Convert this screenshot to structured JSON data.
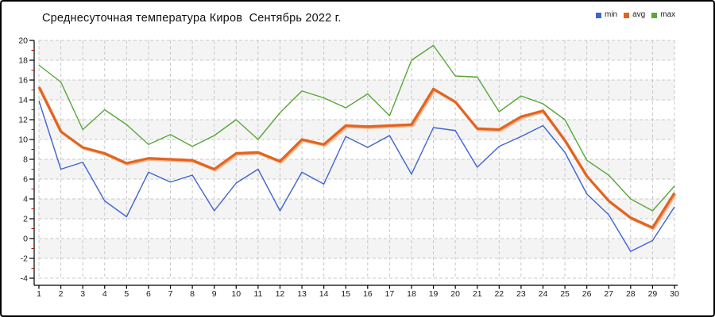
{
  "title": "Среднесуточная температура Киров  Сентябрь 2022 г.",
  "legend": {
    "position": "top-right",
    "items": [
      "min",
      "avg",
      "max"
    ]
  },
  "axis": {
    "ytick_labels": [
      "20",
      "18",
      "16",
      "14",
      "12",
      "10",
      "8",
      "6",
      "4",
      "2",
      "0",
      "-2",
      "-4"
    ],
    "xtick_labels": [
      "1",
      "2",
      "3",
      "4",
      "5",
      "6",
      "7",
      "8",
      "9",
      "10",
      "11",
      "12",
      "13",
      "14",
      "15",
      "16",
      "17",
      "18",
      "19",
      "20",
      "21",
      "22",
      "23",
      "24",
      "25",
      "26",
      "27",
      "28",
      "29",
      "30"
    ]
  },
  "style": {
    "background": "#ffffff",
    "border_color": "#000000",
    "plot_band_color": "#f4f4f5",
    "gridline_color": "#c9c9c9",
    "axis_color": "#000000",
    "minor_tick_color": "#cc0000",
    "tick_label_color": "#1a1a1a",
    "title_color": "#111111",
    "avg_halo_color": "#f4ae84"
  },
  "chart_data": {
    "type": "line",
    "title": "Среднесуточная температура Киров  Сентябрь 2022 г.",
    "xlabel": "",
    "ylabel": "",
    "x": [
      1,
      2,
      3,
      4,
      5,
      6,
      7,
      8,
      9,
      10,
      11,
      12,
      13,
      14,
      15,
      16,
      17,
      18,
      19,
      20,
      21,
      22,
      23,
      24,
      25,
      26,
      27,
      28,
      29,
      30
    ],
    "xlim": [
      1,
      30
    ],
    "ylim": [
      -4,
      20
    ],
    "ytick_step": 2,
    "grid": true,
    "grid_style": "dashed",
    "legend_position": "top-right",
    "series": [
      {
        "name": "min",
        "color": "#3f63d2",
        "width": 1.4,
        "values": [
          13.9,
          7.0,
          7.7,
          3.8,
          2.2,
          6.7,
          5.7,
          6.4,
          2.8,
          5.6,
          7.0,
          2.8,
          6.7,
          5.5,
          10.3,
          9.2,
          10.4,
          6.5,
          11.2,
          10.9,
          7.2,
          9.3,
          10.3,
          11.4,
          8.7,
          4.5,
          2.4,
          -1.3,
          -0.2,
          3.2
        ]
      },
      {
        "name": "avg",
        "color": "#e2641f",
        "width": 3.2,
        "values": [
          15.3,
          10.8,
          9.2,
          8.6,
          7.6,
          8.1,
          8.0,
          7.9,
          7.0,
          8.6,
          8.7,
          7.8,
          10.0,
          9.5,
          11.4,
          11.3,
          11.4,
          11.5,
          15.1,
          13.8,
          11.1,
          11.0,
          12.3,
          12.9,
          9.9,
          6.3,
          3.8,
          2.1,
          1.1,
          4.6
        ]
      },
      {
        "name": "max",
        "color": "#58a737",
        "width": 1.4,
        "values": [
          17.5,
          15.8,
          11.0,
          13.0,
          11.5,
          9.5,
          10.5,
          9.3,
          10.4,
          12.0,
          10.0,
          12.7,
          14.9,
          14.2,
          13.2,
          14.6,
          12.4,
          18.0,
          19.5,
          16.4,
          16.3,
          12.8,
          14.4,
          13.6,
          12.0,
          7.9,
          6.4,
          4.0,
          2.8,
          5.3
        ]
      }
    ]
  }
}
